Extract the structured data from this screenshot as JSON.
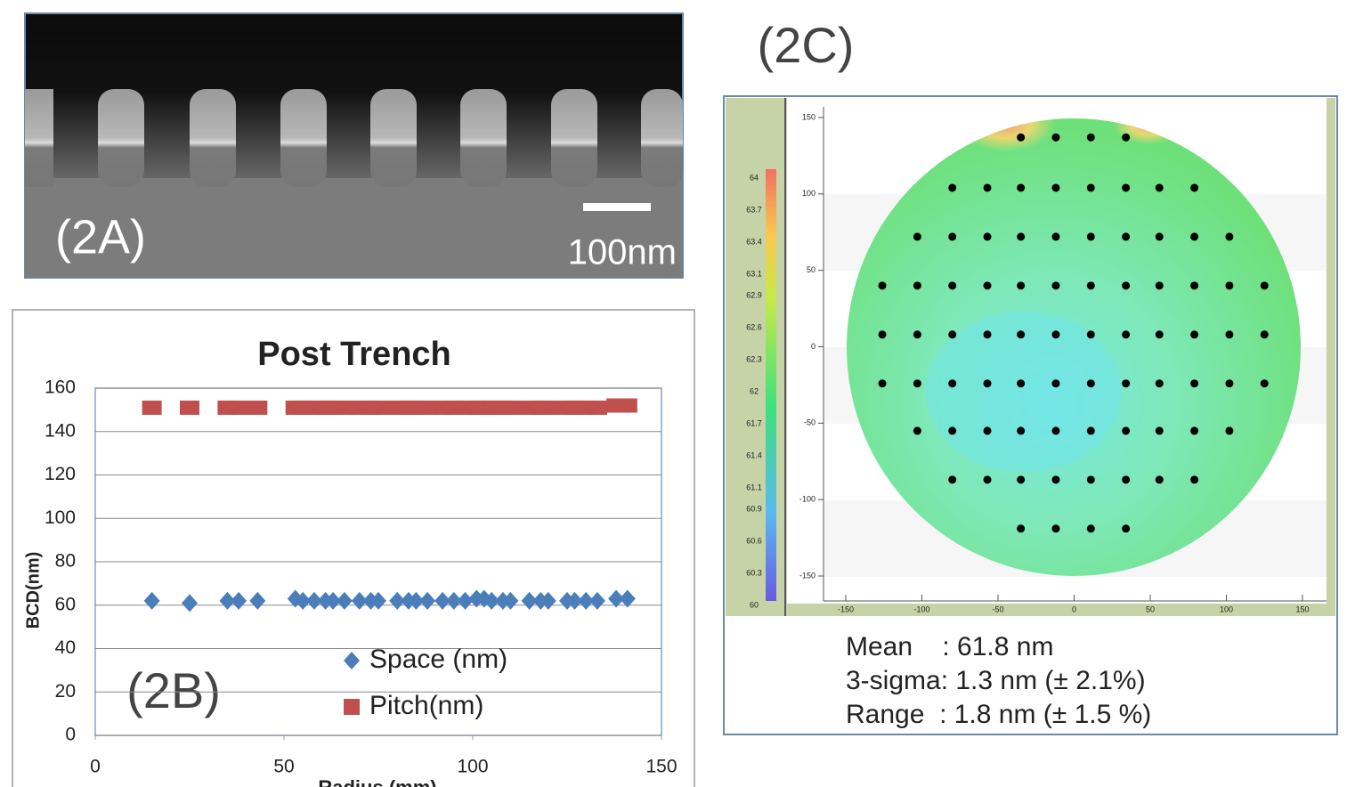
{
  "sem": {
    "label": "(2A)",
    "scale_bar": "100nm"
  },
  "chart_data": [
    {
      "type": "scatter",
      "title": "Post Trench",
      "panel_label": "(2B)",
      "x_label": "Radius (mm)",
      "y_label": "BCD(nm)",
      "xlim": [
        0,
        150
      ],
      "xticks": [
        0,
        50,
        100,
        150
      ],
      "ylim": [
        0,
        160
      ],
      "yticks": [
        0,
        20,
        40,
        60,
        80,
        100,
        120,
        140,
        160
      ],
      "grid": true,
      "legend": "lower center",
      "series": [
        {
          "name": "Space (nm)",
          "color": "#4a7ebb",
          "marker": "diamond",
          "x": [
            15,
            25,
            35,
            38,
            43,
            53,
            55,
            58,
            61,
            63,
            66,
            70,
            73,
            75,
            80,
            83,
            85,
            88,
            92,
            95,
            98,
            101,
            103,
            105,
            108,
            110,
            115,
            118,
            120,
            125,
            127,
            130,
            133,
            138,
            141
          ],
          "values": [
            62,
            61,
            62,
            62,
            62,
            63,
            62,
            62,
            62,
            62,
            62,
            62,
            62,
            62,
            62,
            62,
            62,
            62,
            62,
            62,
            62,
            63,
            63,
            62,
            62,
            62,
            62,
            62,
            62,
            62,
            62,
            62,
            62,
            63,
            63
          ]
        },
        {
          "name": "Pitch(nm)",
          "color": "#c0504d",
          "marker": "square",
          "x": [
            15,
            25,
            35,
            38,
            43,
            53,
            55,
            58,
            61,
            63,
            66,
            70,
            73,
            75,
            80,
            83,
            85,
            88,
            92,
            95,
            98,
            101,
            103,
            105,
            108,
            110,
            115,
            118,
            120,
            125,
            127,
            130,
            133,
            138,
            141
          ],
          "values": [
            151,
            151,
            151,
            151,
            151,
            151,
            151,
            151,
            151,
            151,
            151,
            151,
            151,
            151,
            151,
            151,
            151,
            151,
            151,
            151,
            151,
            151,
            151,
            151,
            151,
            151,
            151,
            151,
            151,
            151,
            151,
            151,
            151,
            152,
            152
          ]
        }
      ]
    },
    {
      "type": "wafer_map",
      "panel_label": "(2C)",
      "xlim": [
        -150,
        150
      ],
      "xticks": [
        -150,
        -100,
        -50,
        0,
        50,
        100,
        150
      ],
      "ylim": [
        -150,
        150
      ],
      "yticks": [
        -150,
        -100,
        -50,
        0,
        50,
        100,
        150
      ],
      "colorbar": {
        "lim": [
          60,
          64
        ],
        "ticks": [
          60,
          60.3,
          60.6,
          60.9,
          61.1,
          61.4,
          61.7,
          62,
          62.3,
          62.6,
          62.9,
          63.1,
          63.4,
          63.7,
          64
        ]
      },
      "color": "#000000",
      "x": [
        -35,
        -12,
        11,
        34,
        -80,
        -57,
        -35,
        -12,
        11,
        34,
        56,
        79,
        -103,
        -80,
        -57,
        -35,
        -12,
        11,
        34,
        56,
        79,
        102,
        -126,
        -103,
        -80,
        -57,
        -35,
        -12,
        11,
        34,
        56,
        79,
        102,
        125,
        -126,
        -103,
        -80,
        -57,
        -35,
        -12,
        11,
        34,
        56,
        79,
        102,
        125,
        -126,
        -103,
        -80,
        -57,
        -35,
        -12,
        11,
        34,
        56,
        79,
        102,
        125,
        -103,
        -80,
        -57,
        -35,
        -12,
        11,
        34,
        56,
        79,
        102,
        -80,
        -57,
        -35,
        -12,
        11,
        34,
        56,
        79,
        -35,
        -12,
        11,
        34
      ],
      "y": [
        137,
        137,
        137,
        137,
        104,
        104,
        104,
        104,
        104,
        104,
        104,
        104,
        72,
        72,
        72,
        72,
        72,
        72,
        72,
        72,
        72,
        72,
        40,
        40,
        40,
        40,
        40,
        40,
        40,
        40,
        40,
        40,
        40,
        40,
        8,
        8,
        8,
        8,
        8,
        8,
        8,
        8,
        8,
        8,
        8,
        8,
        -24,
        -24,
        -24,
        -24,
        -24,
        -24,
        -24,
        -24,
        -24,
        -24,
        -24,
        -24,
        -55,
        -55,
        -55,
        -55,
        -55,
        -55,
        -55,
        -55,
        -55,
        -55,
        -87,
        -87,
        -87,
        -87,
        -87,
        -87,
        -87,
        -87,
        -119,
        -119,
        -119,
        -119
      ],
      "stats": [
        "Mean    : 61.8 nm",
        "3-sigma: 1.3 nm (± 2.1%)",
        "Range  : 1.8 nm (± 1.5 %)"
      ]
    }
  ]
}
